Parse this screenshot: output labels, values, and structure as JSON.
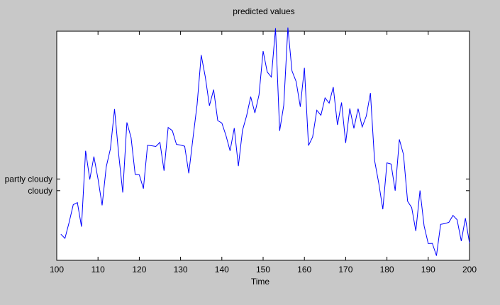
{
  "chart_data": {
    "type": "line",
    "title": "predicted values",
    "xlabel": "Time",
    "ylabel": "",
    "xlim": [
      100,
      200
    ],
    "ylim": [
      0,
      100
    ],
    "xticks": [
      100,
      110,
      120,
      130,
      140,
      150,
      160,
      170,
      180,
      190,
      200
    ],
    "yticks": [
      {
        "value": 35.5,
        "label": "partly cloudy"
      },
      {
        "value": 30.4,
        "label": "cloudy"
      }
    ],
    "grid": false,
    "series_color": "#0000ff",
    "series": [
      {
        "x": [
          101,
          102,
          103,
          104,
          105,
          106,
          107,
          108,
          109,
          110,
          111,
          112,
          113,
          114,
          115,
          116,
          117,
          118,
          119,
          120,
          121,
          122,
          123,
          124,
          125,
          126,
          127,
          128,
          129,
          130,
          131,
          132,
          133,
          134,
          135,
          136,
          137,
          138,
          139,
          140,
          141,
          142,
          143,
          144,
          145,
          146,
          147,
          148,
          149,
          150,
          151,
          152,
          153,
          154,
          155,
          156,
          157,
          158,
          159,
          160,
          161,
          162,
          163,
          164,
          165,
          166,
          167,
          168,
          169,
          170,
          171,
          172,
          173,
          174,
          175,
          176,
          177,
          178,
          179,
          180,
          181,
          182,
          183,
          184,
          185,
          186,
          187,
          188,
          189,
          190,
          191,
          192,
          193,
          194,
          195,
          196,
          197,
          198,
          199,
          200
        ],
        "y": [
          11.4,
          9.6,
          16.6,
          24.3,
          25.2,
          14.7,
          47.8,
          35.3,
          45.3,
          35.5,
          24.0,
          40.8,
          48.7,
          66.0,
          46.4,
          29.6,
          60.2,
          53.6,
          37.5,
          37.3,
          31.3,
          50.2,
          50.0,
          49.7,
          51.5,
          39.1,
          58.0,
          56.6,
          50.6,
          50.3,
          49.8,
          38.0,
          53.4,
          68.0,
          89.6,
          80.0,
          67.5,
          74.5,
          61.0,
          59.9,
          54.5,
          47.8,
          57.7,
          41.1,
          56.7,
          63.1,
          71.4,
          64.3,
          72.2,
          91.3,
          82.2,
          80.0,
          101.3,
          56.5,
          67.7,
          101.6,
          82.7,
          78.0,
          67.0,
          84.0,
          50.1,
          53.8,
          65.5,
          63.3,
          70.9,
          68.6,
          75.6,
          59.1,
          68.9,
          51.2,
          66.3,
          57.6,
          66.2,
          58.2,
          63.0,
          73.0,
          43.7,
          33.7,
          22.3,
          42.5,
          42.0,
          30.4,
          52.8,
          46.2,
          25.8,
          23.0,
          12.8,
          30.5,
          15.0,
          7.3,
          7.4,
          2.0,
          15.7,
          16.0,
          16.6,
          19.6,
          17.7,
          8.4,
          18.4,
          7.5
        ]
      }
    ]
  }
}
